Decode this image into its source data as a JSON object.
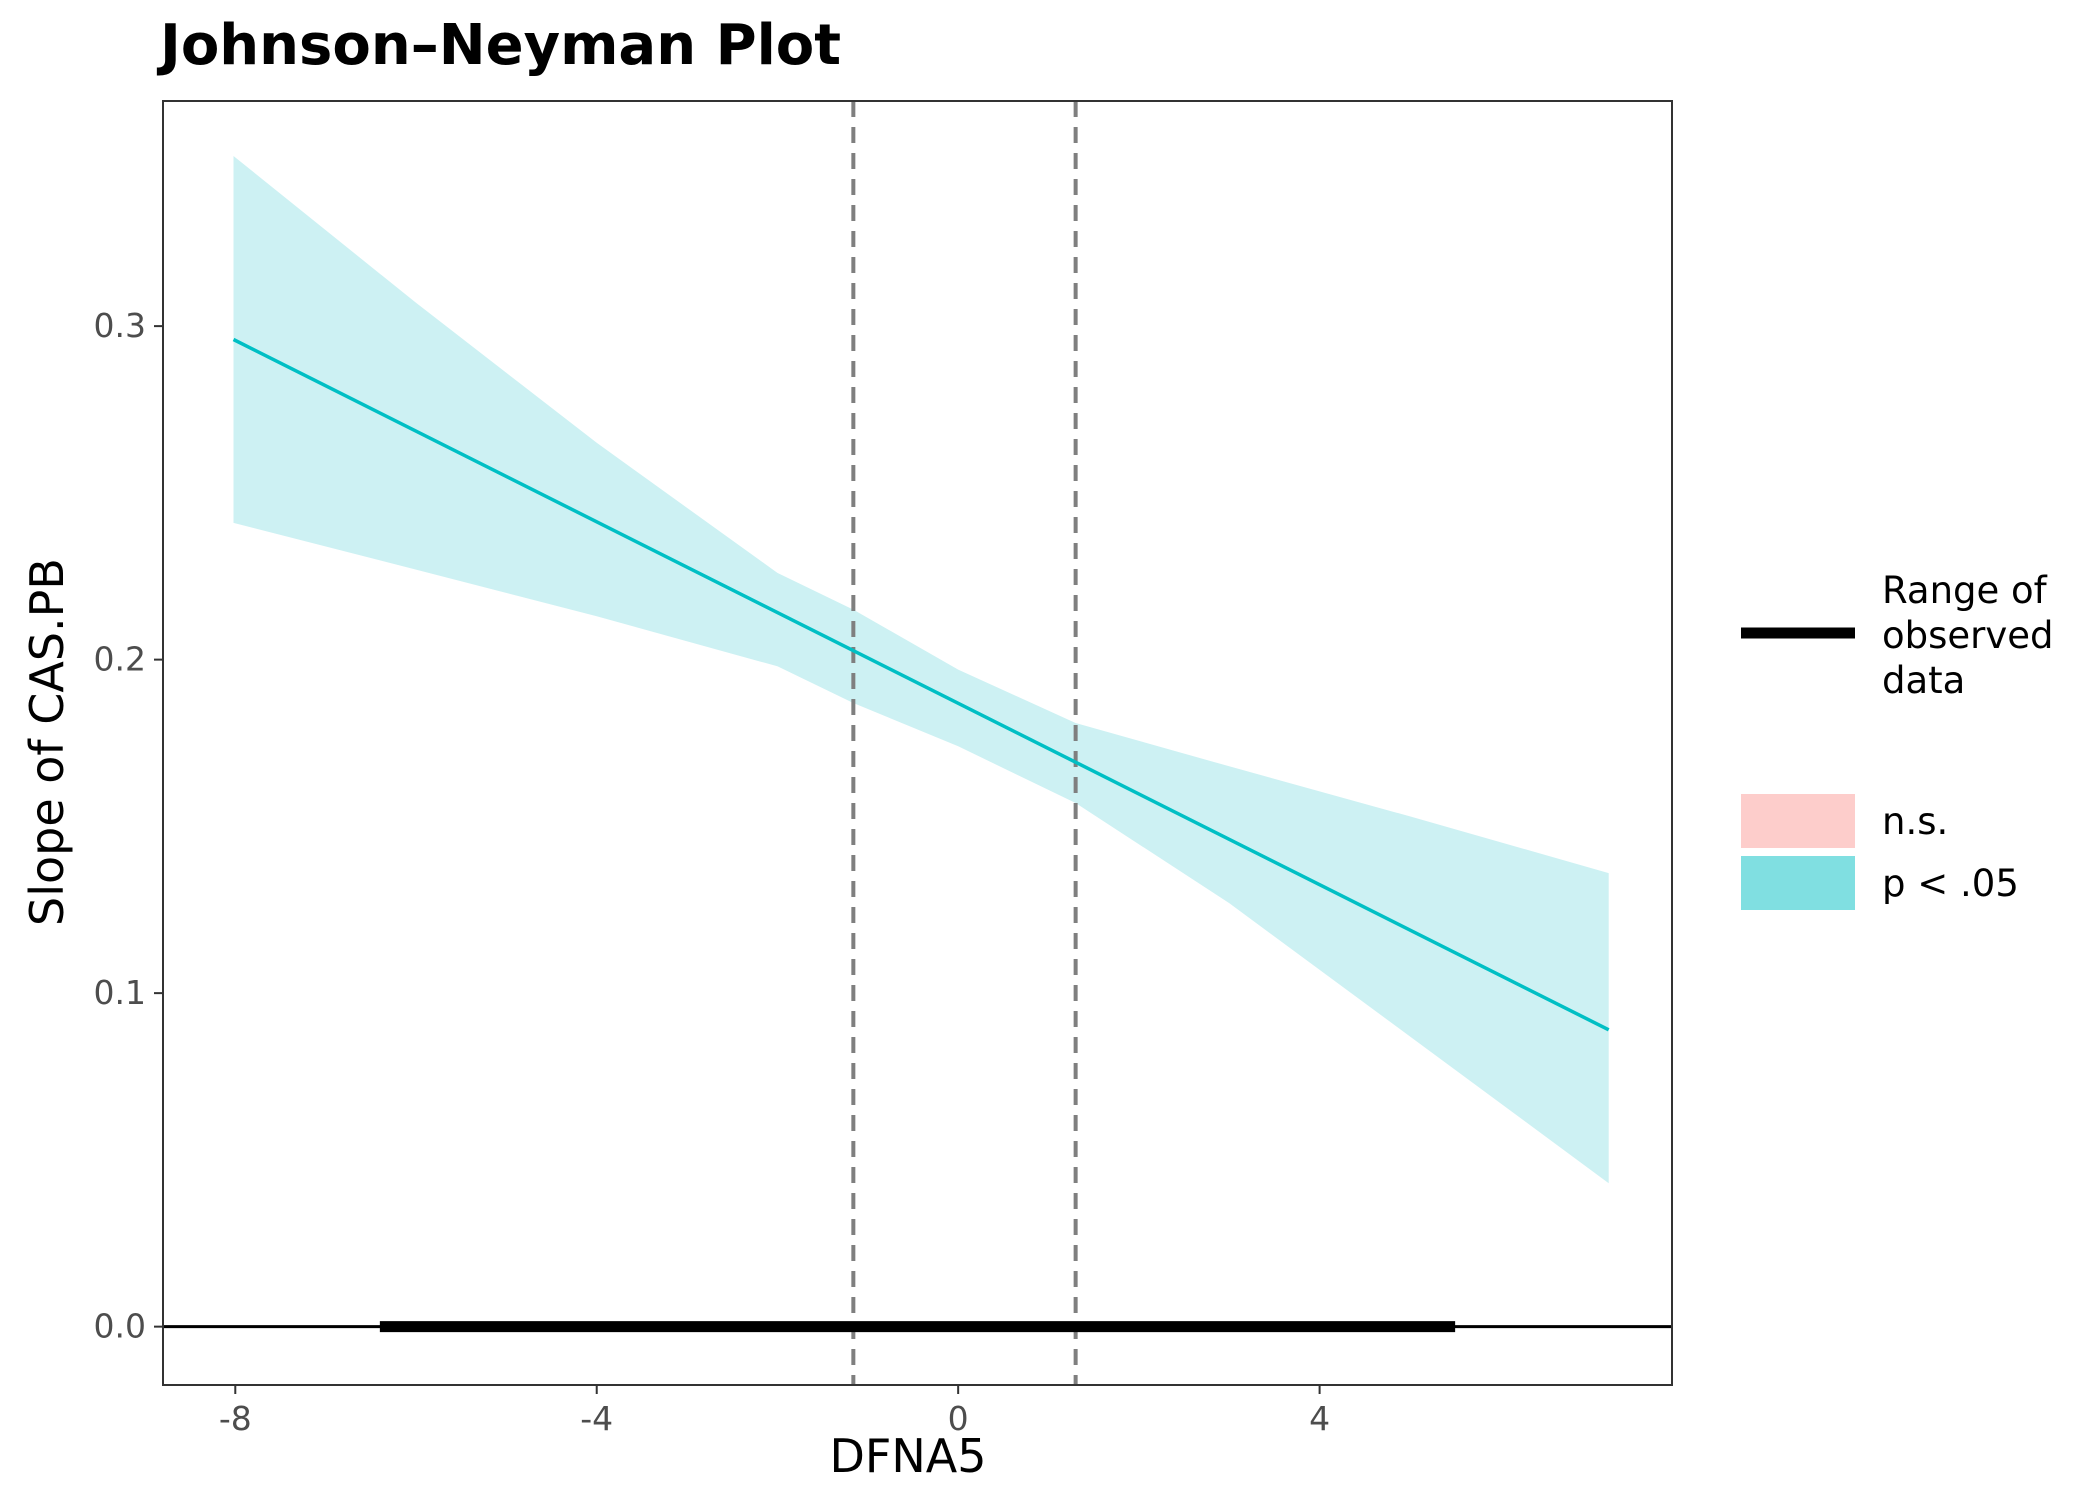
{
  "chart_data": {
    "type": "line",
    "title": "Johnson–Neyman Plot",
    "xlabel": "DFNA5",
    "ylabel": "Slope of CAS.PB",
    "xlim": [
      -8.8,
      7.9
    ],
    "ylim": [
      -0.0175,
      0.3675
    ],
    "x_ticks": [
      -8,
      -4,
      0,
      4
    ],
    "x_tick_labels": [
      "-8",
      "-4",
      "0",
      "4"
    ],
    "y_ticks": [
      0.0,
      0.1,
      0.2,
      0.3
    ],
    "y_tick_labels": [
      "0.0",
      "0.1",
      "0.2",
      "0.3"
    ],
    "slope_line": {
      "x": [
        -8.02,
        7.2
      ],
      "y": [
        0.296,
        0.089
      ]
    },
    "confidence_band": {
      "x": [
        -8.02,
        -6,
        -4,
        -2,
        -1.16,
        0,
        1.3,
        3,
        5,
        7.2
      ],
      "upper": [
        0.351,
        0.307,
        0.265,
        0.226,
        0.215,
        0.197,
        0.181,
        0.168,
        0.153,
        0.136
      ],
      "lower": [
        0.241,
        0.227,
        0.213,
        0.198,
        0.187,
        0.174,
        0.157,
        0.127,
        0.087,
        0.043
      ]
    },
    "jn_boundaries": [
      -1.16,
      1.3
    ],
    "zero_line": 0,
    "observed_range": [
      -6.4,
      5.5
    ],
    "grid": false,
    "legend_position": "right",
    "colors": {
      "significant": "#00BFC4",
      "significant_band": "#CDF1F3",
      "nonsignificant": "#F8766D",
      "nonsignificant_swatch": "#FDCDCB",
      "significant_swatch": "#80DFE1",
      "boundary_line": "#7f7f7f"
    }
  },
  "legend": {
    "range_label_lines": [
      "Range of",
      "observed",
      "data"
    ],
    "ns_label": "n.s.",
    "sig_label": "p < .05"
  }
}
